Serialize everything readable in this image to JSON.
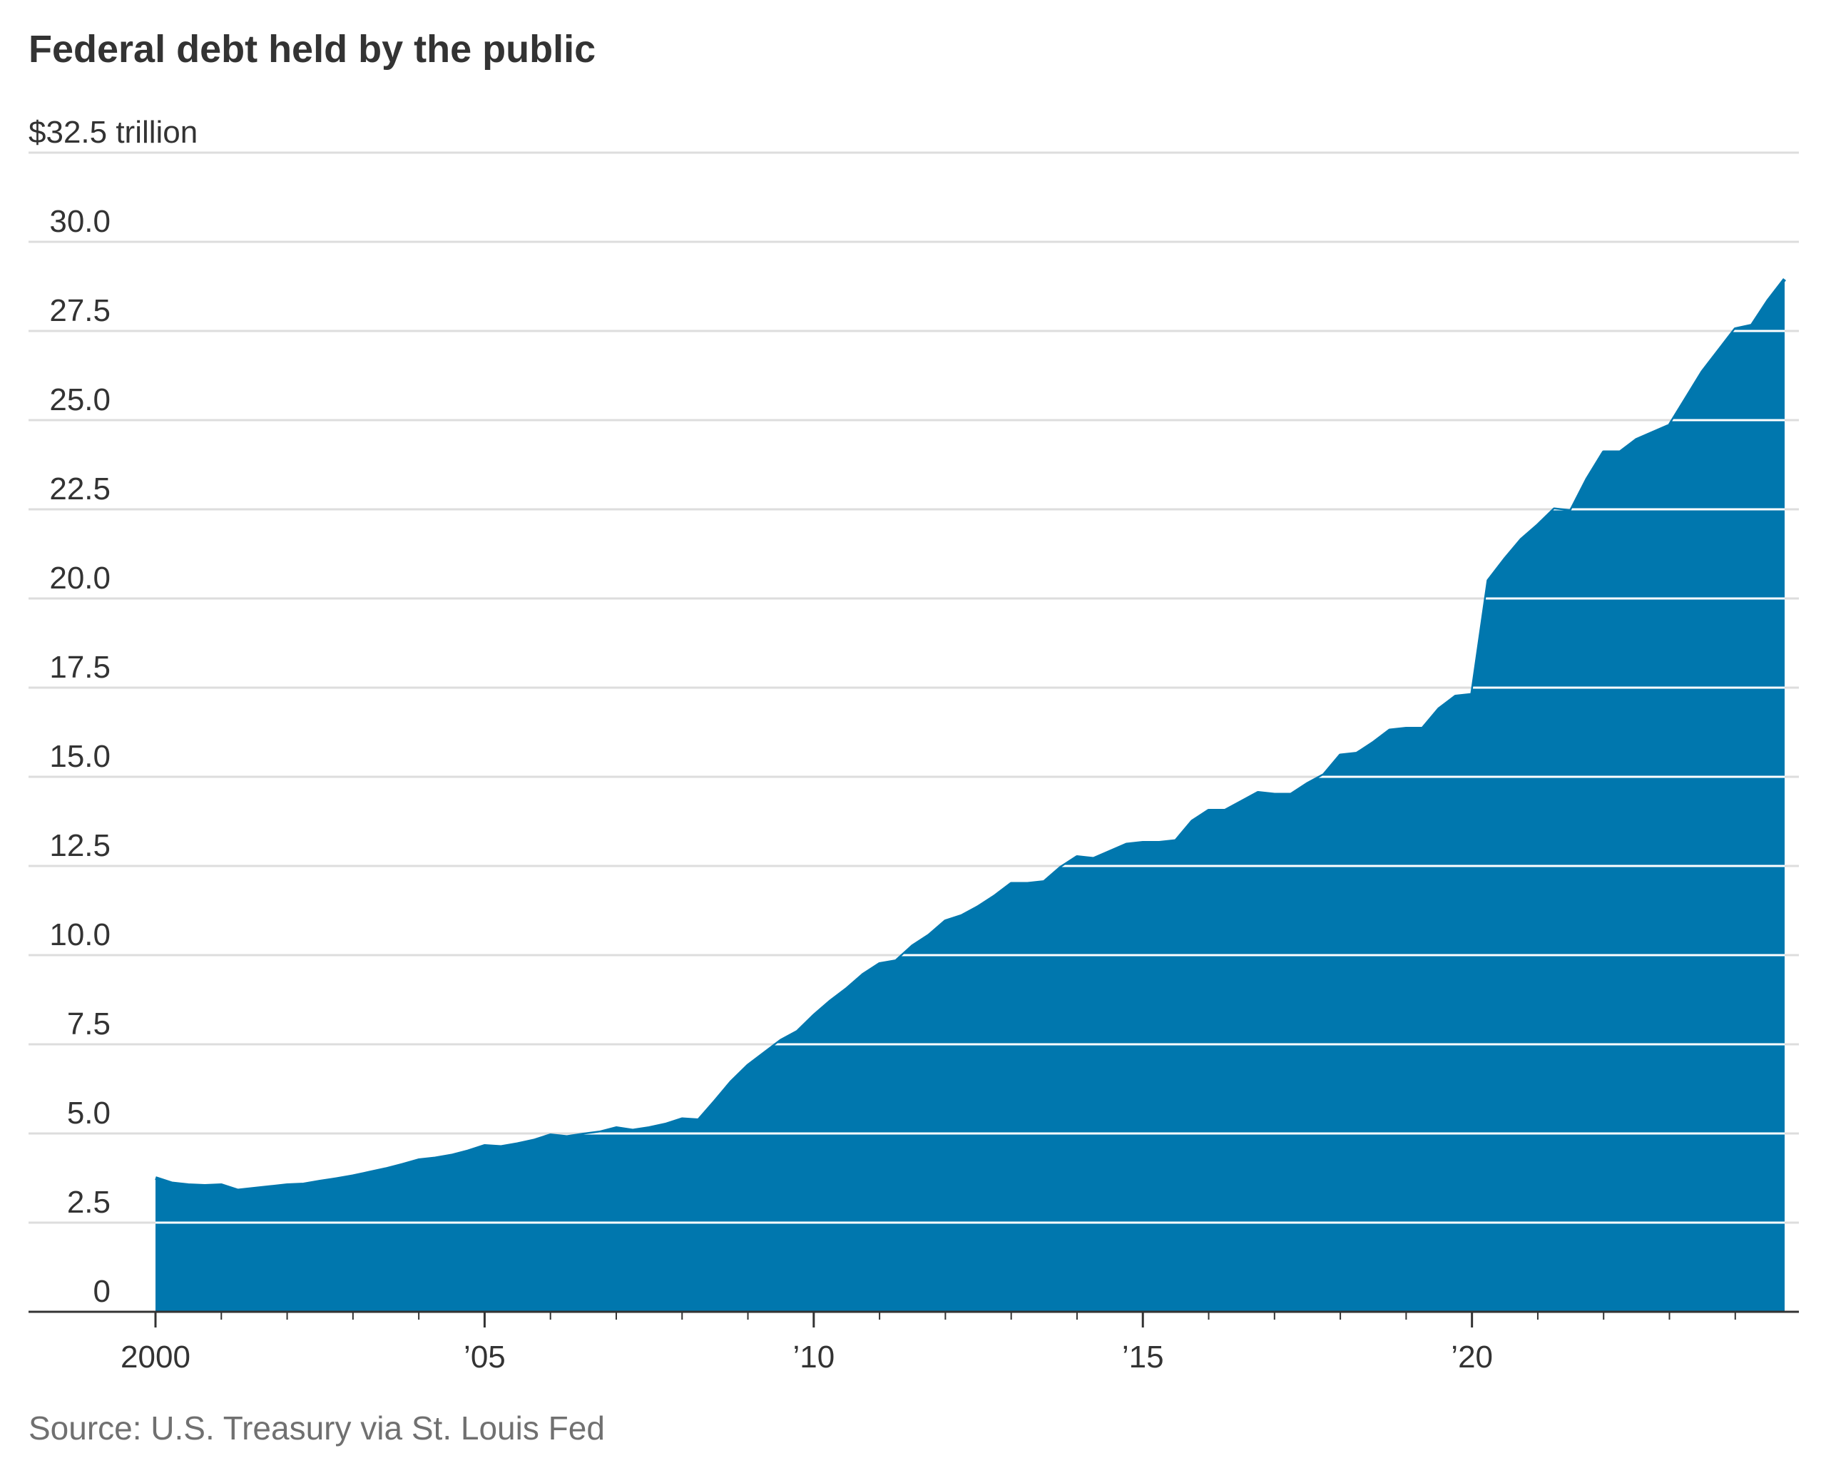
{
  "chart_data": {
    "type": "area",
    "title": "Federal debt held by the public",
    "source": "Source: U.S. Treasury via St. Louis Fed",
    "ylabel": "",
    "xlabel": "",
    "y_axis_top_label": "$32.5 trillion",
    "ylim": [
      0,
      32.5
    ],
    "xlim": [
      2000,
      2024.75
    ],
    "grid": true,
    "color": "#0077ae",
    "y_ticks": [
      {
        "value": 0,
        "label": "0"
      },
      {
        "value": 2.5,
        "label": "2.5"
      },
      {
        "value": 5,
        "label": "5.0"
      },
      {
        "value": 7.5,
        "label": "7.5"
      },
      {
        "value": 10,
        "label": "10.0"
      },
      {
        "value": 12.5,
        "label": "12.5"
      },
      {
        "value": 15,
        "label": "15.0"
      },
      {
        "value": 17.5,
        "label": "17.5"
      },
      {
        "value": 20,
        "label": "20.0"
      },
      {
        "value": 22.5,
        "label": "22.5"
      },
      {
        "value": 25,
        "label": "25.0"
      },
      {
        "value": 27.5,
        "label": "27.5"
      },
      {
        "value": 30,
        "label": "30.0"
      },
      {
        "value": 32.5,
        "label": "$32.5 trillion"
      }
    ],
    "x_ticks": [
      {
        "value": 2000,
        "label": "2000"
      },
      {
        "value": 2005,
        "label": "’05"
      },
      {
        "value": 2010,
        "label": "’10"
      },
      {
        "value": 2015,
        "label": "’15"
      },
      {
        "value": 2020,
        "label": "’20"
      }
    ],
    "x_minor_ticks": [
      2001,
      2002,
      2003,
      2004,
      2006,
      2007,
      2008,
      2009,
      2011,
      2012,
      2013,
      2014,
      2016,
      2017,
      2018,
      2019,
      2021,
      2022,
      2023,
      2024
    ],
    "x": [
      2000.0,
      2000.25,
      2000.5,
      2000.75,
      2001.0,
      2001.25,
      2001.5,
      2001.75,
      2002.0,
      2002.25,
      2002.5,
      2002.75,
      2003.0,
      2003.25,
      2003.5,
      2003.75,
      2004.0,
      2004.25,
      2004.5,
      2004.75,
      2005.0,
      2005.25,
      2005.5,
      2005.75,
      2006.0,
      2006.25,
      2006.5,
      2006.75,
      2007.0,
      2007.25,
      2007.5,
      2007.75,
      2008.0,
      2008.25,
      2008.5,
      2008.75,
      2009.0,
      2009.25,
      2009.5,
      2009.75,
      2010.0,
      2010.25,
      2010.5,
      2010.75,
      2011.0,
      2011.25,
      2011.5,
      2011.75,
      2012.0,
      2012.25,
      2012.5,
      2012.75,
      2013.0,
      2013.25,
      2013.5,
      2013.75,
      2014.0,
      2014.25,
      2014.5,
      2014.75,
      2015.0,
      2015.25,
      2015.5,
      2015.75,
      2016.0,
      2016.25,
      2016.5,
      2016.75,
      2017.0,
      2017.25,
      2017.5,
      2017.75,
      2018.0,
      2018.25,
      2018.5,
      2018.75,
      2019.0,
      2019.25,
      2019.5,
      2019.75,
      2020.0,
      2020.25,
      2020.5,
      2020.75,
      2021.0,
      2021.25,
      2021.5,
      2021.75,
      2022.0,
      2022.25,
      2022.5,
      2022.75,
      2023.0,
      2023.25,
      2023.5,
      2023.75,
      2024.0,
      2024.25,
      2024.5,
      2024.75
    ],
    "values": [
      3.75,
      3.6,
      3.55,
      3.53,
      3.55,
      3.4,
      3.45,
      3.5,
      3.55,
      3.57,
      3.65,
      3.72,
      3.8,
      3.9,
      4.0,
      4.12,
      4.25,
      4.3,
      4.38,
      4.5,
      4.65,
      4.62,
      4.7,
      4.8,
      4.95,
      4.9,
      4.97,
      5.03,
      5.15,
      5.08,
      5.15,
      5.25,
      5.4,
      5.37,
      5.9,
      6.45,
      6.9,
      7.25,
      7.6,
      7.85,
      8.3,
      8.7,
      9.05,
      9.45,
      9.75,
      9.83,
      10.25,
      10.55,
      10.95,
      11.1,
      11.35,
      11.65,
      12.0,
      12.0,
      12.05,
      12.45,
      12.75,
      12.7,
      12.9,
      13.1,
      13.15,
      13.15,
      13.2,
      13.75,
      14.05,
      14.05,
      14.3,
      14.55,
      14.5,
      14.5,
      14.8,
      15.05,
      15.6,
      15.65,
      15.95,
      16.3,
      16.35,
      16.35,
      16.9,
      17.25,
      17.3,
      20.5,
      21.1,
      21.65,
      22.05,
      22.5,
      22.45,
      23.35,
      24.1,
      24.1,
      24.45,
      24.65,
      24.85,
      25.6,
      26.35,
      26.95,
      27.55,
      27.65,
      28.35,
      28.95
    ]
  }
}
